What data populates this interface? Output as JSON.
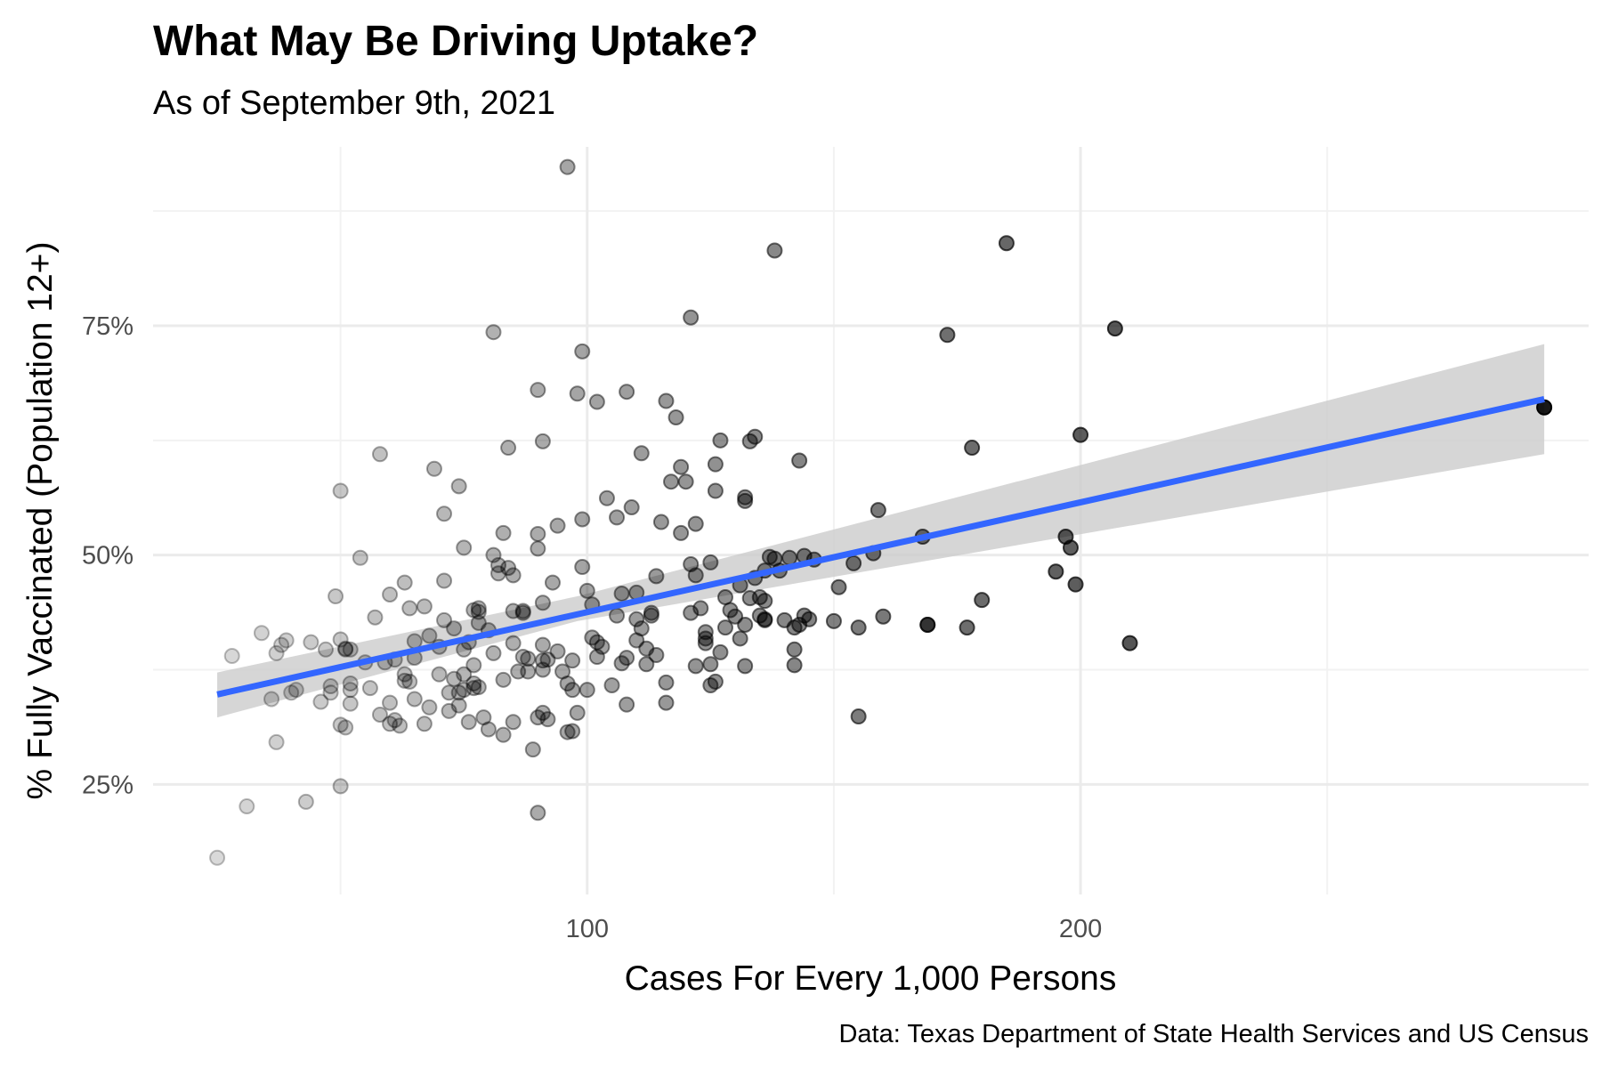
{
  "chart_data": {
    "type": "scatter",
    "title": "What May Be Driving Uptake?",
    "subtitle": "As of September 9th, 2021",
    "xlabel": "Cases For Every 1,000 Persons",
    "ylabel": "% Fully Vaccinated (Population 12+)",
    "caption": "Data: Texas Department of State Health Services and US Census",
    "xlim": [
      12,
      303
    ],
    "ylim": [
      0.13,
      0.945
    ],
    "x_ticks": [
      {
        "value": 100,
        "label": "100"
      },
      {
        "value": 200,
        "label": "200"
      }
    ],
    "y_ticks": [
      {
        "value": 0.25,
        "label": "25%"
      },
      {
        "value": 0.5,
        "label": "50%"
      },
      {
        "value": 0.75,
        "label": "75%"
      }
    ],
    "x_minor_gridlines": [
      50,
      150,
      250
    ],
    "y_minor_gridlines": [
      0.375,
      0.625,
      0.875
    ],
    "grid": true,
    "point_color": "#000000",
    "point_alpha_scale": "increases with x",
    "trend_line": {
      "method": "linear",
      "color": "#3366ff",
      "x": [
        25,
        294
      ],
      "y": [
        0.348,
        0.67
      ]
    },
    "confidence_band": {
      "color": "#cccccc",
      "x": [
        25,
        98,
        294
      ],
      "y_lower": [
        0.323,
        0.428,
        0.61
      ],
      "y_upper": [
        0.372,
        0.455,
        0.73
      ]
    },
    "points": [
      [
        25,
        0.17
      ],
      [
        28,
        0.39
      ],
      [
        31,
        0.226
      ],
      [
        34,
        0.415
      ],
      [
        36,
        0.343
      ],
      [
        37,
        0.296
      ],
      [
        37,
        0.393
      ],
      [
        38,
        0.402
      ],
      [
        39,
        0.407
      ],
      [
        40,
        0.35
      ],
      [
        41,
        0.353
      ],
      [
        43,
        0.231
      ],
      [
        44,
        0.405
      ],
      [
        46,
        0.34
      ],
      [
        47,
        0.397
      ],
      [
        48,
        0.35
      ],
      [
        48,
        0.357
      ],
      [
        49,
        0.455
      ],
      [
        50,
        0.408
      ],
      [
        50,
        0.248
      ],
      [
        50,
        0.315
      ],
      [
        50,
        0.57
      ],
      [
        51,
        0.397
      ],
      [
        51,
        0.398
      ],
      [
        51,
        0.312
      ],
      [
        52,
        0.397
      ],
      [
        52,
        0.36
      ],
      [
        52,
        0.338
      ],
      [
        52,
        0.353
      ],
      [
        54,
        0.497
      ],
      [
        55,
        0.383
      ],
      [
        56,
        0.355
      ],
      [
        57,
        0.432
      ],
      [
        58,
        0.61
      ],
      [
        58,
        0.326
      ],
      [
        59,
        0.383
      ],
      [
        60,
        0.339
      ],
      [
        60,
        0.457
      ],
      [
        60,
        0.316
      ],
      [
        61,
        0.32
      ],
      [
        61,
        0.386
      ],
      [
        62,
        0.314
      ],
      [
        63,
        0.47
      ],
      [
        63,
        0.363
      ],
      [
        63,
        0.37
      ],
      [
        64,
        0.442
      ],
      [
        64,
        0.362
      ],
      [
        65,
        0.343
      ],
      [
        65,
        0.388
      ],
      [
        65,
        0.406
      ],
      [
        67,
        0.444
      ],
      [
        67,
        0.316
      ],
      [
        68,
        0.334
      ],
      [
        68,
        0.412
      ],
      [
        69,
        0.594
      ],
      [
        70,
        0.37
      ],
      [
        70,
        0.4
      ],
      [
        71,
        0.472
      ],
      [
        71,
        0.545
      ],
      [
        71,
        0.429
      ],
      [
        72,
        0.33
      ],
      [
        72,
        0.35
      ],
      [
        73,
        0.42
      ],
      [
        73,
        0.365
      ],
      [
        74,
        0.575
      ],
      [
        74,
        0.35
      ],
      [
        74,
        0.336
      ],
      [
        75,
        0.508
      ],
      [
        75,
        0.397
      ],
      [
        75,
        0.353
      ],
      [
        75,
        0.37
      ],
      [
        76,
        0.318
      ],
      [
        76,
        0.405
      ],
      [
        77,
        0.38
      ],
      [
        77,
        0.36
      ],
      [
        77,
        0.355
      ],
      [
        77,
        0.44
      ],
      [
        78,
        0.442
      ],
      [
        78,
        0.426
      ],
      [
        78,
        0.356
      ],
      [
        78,
        0.438
      ],
      [
        79,
        0.323
      ],
      [
        80,
        0.31
      ],
      [
        80,
        0.418
      ],
      [
        81,
        0.5
      ],
      [
        81,
        0.743
      ],
      [
        81,
        0.393
      ],
      [
        82,
        0.489
      ],
      [
        82,
        0.48
      ],
      [
        83,
        0.364
      ],
      [
        83,
        0.524
      ],
      [
        83,
        0.304
      ],
      [
        84,
        0.486
      ],
      [
        84,
        0.617
      ],
      [
        85,
        0.478
      ],
      [
        85,
        0.318
      ],
      [
        85,
        0.439
      ],
      [
        85,
        0.404
      ],
      [
        86,
        0.373
      ],
      [
        87,
        0.439
      ],
      [
        87,
        0.437
      ],
      [
        87,
        0.389
      ],
      [
        88,
        0.387
      ],
      [
        88,
        0.373
      ],
      [
        89,
        0.288
      ],
      [
        90,
        0.68
      ],
      [
        90,
        0.219
      ],
      [
        90,
        0.323
      ],
      [
        90,
        0.507
      ],
      [
        90,
        0.523
      ],
      [
        91,
        0.624
      ],
      [
        91,
        0.385
      ],
      [
        91,
        0.375
      ],
      [
        91,
        0.402
      ],
      [
        91,
        0.448
      ],
      [
        91,
        0.328
      ],
      [
        92,
        0.321
      ],
      [
        92,
        0.386
      ],
      [
        93,
        0.47
      ],
      [
        94,
        0.395
      ],
      [
        94,
        0.532
      ],
      [
        95,
        0.373
      ],
      [
        96,
        0.923
      ],
      [
        96,
        0.36
      ],
      [
        96,
        0.307
      ],
      [
        97,
        0.353
      ],
      [
        97,
        0.308
      ],
      [
        97,
        0.385
      ],
      [
        98,
        0.676
      ],
      [
        98,
        0.328
      ],
      [
        99,
        0.722
      ],
      [
        99,
        0.539
      ],
      [
        99,
        0.487
      ],
      [
        100,
        0.353
      ],
      [
        100,
        0.461
      ],
      [
        101,
        0.446
      ],
      [
        101,
        0.41
      ],
      [
        102,
        0.667
      ],
      [
        102,
        0.389
      ],
      [
        102,
        0.405
      ],
      [
        103,
        0.4
      ],
      [
        104,
        0.562
      ],
      [
        105,
        0.358
      ],
      [
        106,
        0.434
      ],
      [
        106,
        0.541
      ],
      [
        107,
        0.382
      ],
      [
        107,
        0.458
      ],
      [
        108,
        0.337
      ],
      [
        108,
        0.678
      ],
      [
        108,
        0.388
      ],
      [
        109,
        0.552
      ],
      [
        110,
        0.407
      ],
      [
        110,
        0.43
      ],
      [
        110,
        0.459
      ],
      [
        111,
        0.611
      ],
      [
        111,
        0.42
      ],
      [
        112,
        0.398
      ],
      [
        112,
        0.381
      ],
      [
        113,
        0.434
      ],
      [
        113,
        0.437
      ],
      [
        114,
        0.391
      ],
      [
        114,
        0.477
      ],
      [
        115,
        0.536
      ],
      [
        116,
        0.339
      ],
      [
        116,
        0.361
      ],
      [
        116,
        0.668
      ],
      [
        117,
        0.58
      ],
      [
        118,
        0.65
      ],
      [
        119,
        0.596
      ],
      [
        119,
        0.524
      ],
      [
        120,
        0.58
      ],
      [
        121,
        0.759
      ],
      [
        121,
        0.437
      ],
      [
        121,
        0.49
      ],
      [
        122,
        0.379
      ],
      [
        122,
        0.534
      ],
      [
        122,
        0.478
      ],
      [
        123,
        0.442
      ],
      [
        124,
        0.404
      ],
      [
        124,
        0.409
      ],
      [
        124,
        0.416
      ],
      [
        125,
        0.492
      ],
      [
        125,
        0.358
      ],
      [
        125,
        0.381
      ],
      [
        126,
        0.362
      ],
      [
        126,
        0.599
      ],
      [
        126,
        0.57
      ],
      [
        127,
        0.394
      ],
      [
        127,
        0.625
      ],
      [
        128,
        0.454
      ],
      [
        128,
        0.421
      ],
      [
        129,
        0.44
      ],
      [
        130,
        0.433
      ],
      [
        131,
        0.409
      ],
      [
        131,
        0.467
      ],
      [
        132,
        0.379
      ],
      [
        132,
        0.424
      ],
      [
        132,
        0.559
      ],
      [
        132,
        0.563
      ],
      [
        133,
        0.453
      ],
      [
        133,
        0.624
      ],
      [
        134,
        0.475
      ],
      [
        134,
        0.629
      ],
      [
        135,
        0.454
      ],
      [
        135,
        0.434
      ],
      [
        136,
        0.429
      ],
      [
        136,
        0.43
      ],
      [
        136,
        0.45
      ],
      [
        136,
        0.483
      ],
      [
        137,
        0.498
      ],
      [
        138,
        0.832
      ],
      [
        138,
        0.496
      ],
      [
        139,
        0.483
      ],
      [
        140,
        0.429
      ],
      [
        141,
        0.497
      ],
      [
        142,
        0.38
      ],
      [
        142,
        0.397
      ],
      [
        142,
        0.421
      ],
      [
        143,
        0.603
      ],
      [
        143,
        0.424
      ],
      [
        144,
        0.499
      ],
      [
        144,
        0.434
      ],
      [
        145,
        0.43
      ],
      [
        146,
        0.495
      ],
      [
        150,
        0.428
      ],
      [
        151,
        0.465
      ],
      [
        154,
        0.491
      ],
      [
        155,
        0.421
      ],
      [
        155,
        0.324
      ],
      [
        158,
        0.502
      ],
      [
        159,
        0.549
      ],
      [
        160,
        0.433
      ],
      [
        168,
        0.52
      ],
      [
        169,
        0.424
      ],
      [
        169,
        0.424
      ],
      [
        173,
        0.74
      ],
      [
        177,
        0.421
      ],
      [
        178,
        0.617
      ],
      [
        180,
        0.451
      ],
      [
        185,
        0.84
      ],
      [
        195,
        0.482
      ],
      [
        197,
        0.52
      ],
      [
        198,
        0.508
      ],
      [
        199,
        0.468
      ],
      [
        200,
        0.631
      ],
      [
        207,
        0.747
      ],
      [
        210,
        0.404
      ],
      [
        294,
        0.661
      ]
    ]
  }
}
